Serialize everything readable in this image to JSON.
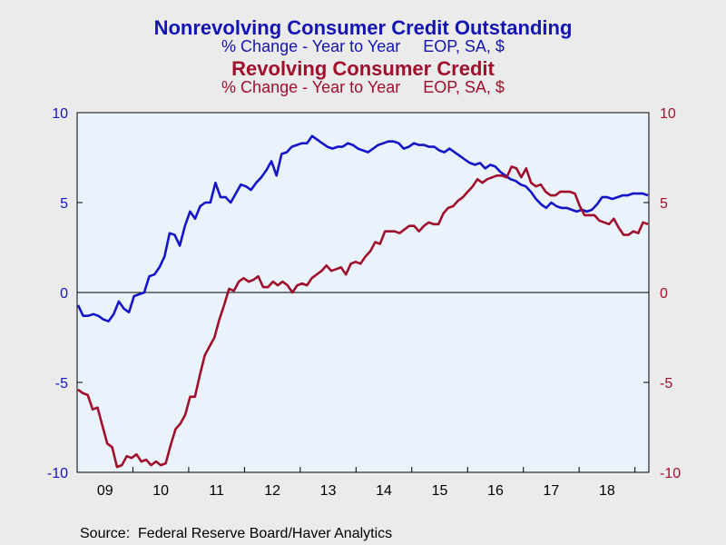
{
  "titles": {
    "series1_title": "Nonrevolving Consumer Credit Outstanding",
    "series1_subtitle": "% Change - Year to Year     EOP, SA, $",
    "series2_title": "Revolving Consumer Credit",
    "series2_subtitle": "% Change - Year to Year     EOP, SA, $"
  },
  "source": "Source:  Federal Reserve Board/Haver Analytics",
  "colors": {
    "series1": "#1414c8",
    "series2": "#a0102c",
    "plot_bg": "#eaf2fb",
    "page_bg": "#ebebeb"
  },
  "chart_data": {
    "type": "line",
    "x_tick_labels": [
      "09",
      "10",
      "11",
      "12",
      "13",
      "14",
      "15",
      "16",
      "17",
      "18"
    ],
    "y_left": {
      "range": [
        -10,
        10
      ],
      "ticks": [
        10,
        5,
        0,
        -5,
        -10
      ],
      "tick_labels": [
        "10",
        "5",
        "0",
        "-5",
        "-10"
      ]
    },
    "y_right": {
      "range": [
        -10,
        10
      ],
      "ticks": [
        10,
        5,
        0,
        -5,
        -10
      ],
      "tick_labels": [
        "10",
        "5",
        "0",
        "-5",
        "-10"
      ]
    },
    "grid": false,
    "zero_line": true,
    "series": [
      {
        "name": "Nonrevolving Consumer Credit Outstanding",
        "axis": "left",
        "color": "#1414c8",
        "values": [
          -0.7,
          -1.3,
          -1.3,
          -1.2,
          -1.3,
          -1.5,
          -1.6,
          -1.2,
          -0.5,
          -0.9,
          -1.1,
          -0.2,
          -0.1,
          0.0,
          0.9,
          1.0,
          1.4,
          2.0,
          3.3,
          3.2,
          2.6,
          3.7,
          4.5,
          4.1,
          4.8,
          5.0,
          5.0,
          6.1,
          5.3,
          5.3,
          5.0,
          5.5,
          6.0,
          5.9,
          5.7,
          6.1,
          6.4,
          6.8,
          7.3,
          6.5,
          7.7,
          7.8,
          8.1,
          8.2,
          8.3,
          8.3,
          8.7,
          8.5,
          8.3,
          8.1,
          8.0,
          8.1,
          8.1,
          8.3,
          8.2,
          8.0,
          7.9,
          7.8,
          8.0,
          8.2,
          8.3,
          8.4,
          8.4,
          8.3,
          8.0,
          8.1,
          8.3,
          8.2,
          8.2,
          8.1,
          8.1,
          7.9,
          7.8,
          8.0,
          7.8,
          7.6,
          7.4,
          7.2,
          7.1,
          7.2,
          6.9,
          7.1,
          7.0,
          6.7,
          6.5,
          6.3,
          6.2,
          6.0,
          5.9,
          5.6,
          5.2,
          4.9,
          4.7,
          5.0,
          4.8,
          4.7,
          4.7,
          4.6,
          4.5,
          4.6,
          4.5,
          4.6,
          4.9,
          5.3,
          5.3,
          5.2,
          5.3,
          5.4,
          5.4,
          5.5,
          5.5,
          5.5,
          5.4
        ]
      },
      {
        "name": "Revolving Consumer Credit",
        "axis": "right",
        "color": "#a0102c",
        "values": [
          -5.4,
          -5.6,
          -5.7,
          -6.5,
          -6.4,
          -7.4,
          -8.4,
          -8.6,
          -9.7,
          -9.6,
          -9.1,
          -9.2,
          -9.0,
          -9.4,
          -9.3,
          -9.6,
          -9.4,
          -9.6,
          -9.5,
          -8.5,
          -7.6,
          -7.3,
          -6.8,
          -5.8,
          -5.8,
          -4.6,
          -3.5,
          -3.0,
          -2.5,
          -1.5,
          -0.7,
          0.2,
          0.1,
          0.6,
          0.8,
          0.6,
          0.7,
          0.9,
          0.3,
          0.3,
          0.6,
          0.4,
          0.6,
          0.4,
          0.0,
          0.4,
          0.5,
          0.4,
          0.8,
          1.0,
          1.2,
          1.5,
          1.2,
          1.3,
          1.4,
          1.0,
          1.6,
          1.7,
          1.6,
          2.0,
          2.3,
          2.8,
          2.7,
          3.4,
          3.4,
          3.4,
          3.3,
          3.5,
          3.7,
          3.7,
          3.4,
          3.7,
          3.9,
          3.8,
          3.8,
          4.4,
          4.7,
          4.8,
          5.1,
          5.3,
          5.6,
          5.9,
          6.3,
          6.1,
          6.3,
          6.4,
          6.5,
          6.5,
          6.4,
          7.0,
          6.9,
          6.4,
          6.9,
          6.1,
          5.9,
          6.0,
          5.6,
          5.4,
          5.4,
          5.6,
          5.6,
          5.6,
          5.5,
          4.8,
          4.3,
          4.3,
          4.3,
          4.0,
          3.9,
          3.8,
          4.1,
          3.6,
          3.2,
          3.2,
          3.4,
          3.3,
          3.9,
          3.8
        ]
      }
    ]
  }
}
